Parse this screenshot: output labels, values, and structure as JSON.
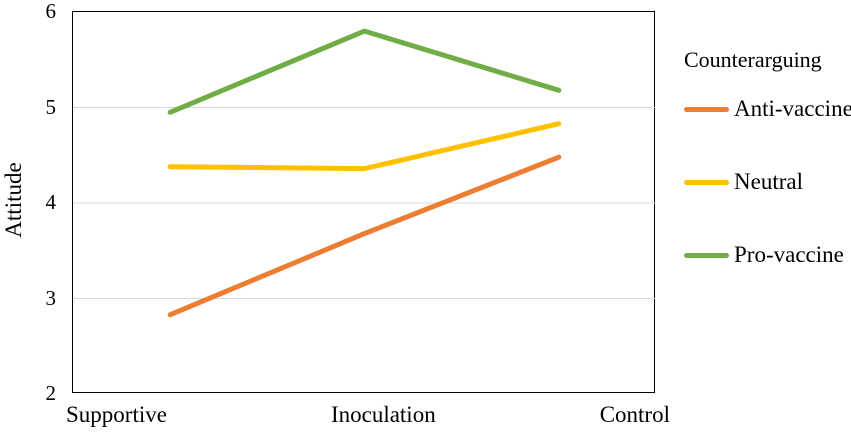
{
  "chart_data": {
    "type": "line",
    "categories": [
      "Supportive",
      "Inoculation",
      "Control"
    ],
    "series": [
      {
        "name": "Anti-vaccine",
        "color": "#ED7D31",
        "values": [
          2.83,
          3.68,
          4.48
        ]
      },
      {
        "name": "Neutral",
        "color": "#FFC000",
        "values": [
          4.38,
          4.36,
          4.83
        ]
      },
      {
        "name": "Pro-vaccine",
        "color": "#70AD47",
        "values": [
          4.95,
          5.8,
          5.18
        ]
      }
    ],
    "title": "",
    "xlabel": "",
    "ylabel": "Attitude",
    "ylim": [
      2,
      6
    ],
    "yticks": [
      6,
      5,
      4,
      3,
      2
    ],
    "grid": true,
    "gridline_color": "#D9D9D9",
    "axis_color": "#000000",
    "line_width": 5,
    "legend": {
      "title": "Counterarguing",
      "position": "right"
    }
  }
}
